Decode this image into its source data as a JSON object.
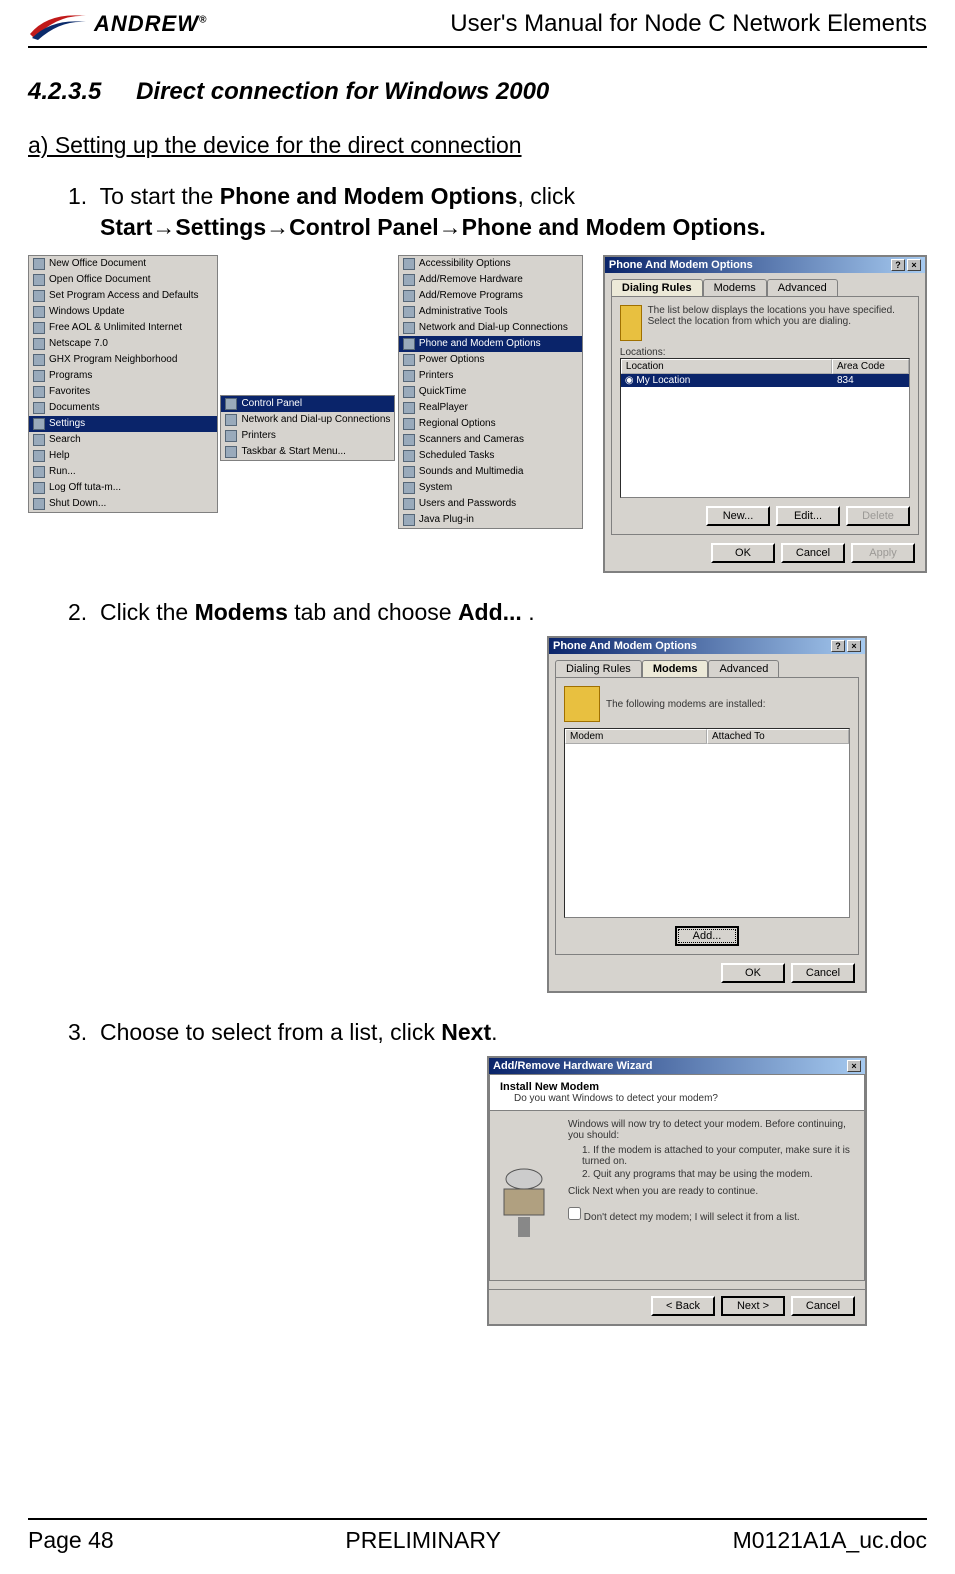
{
  "header": {
    "brand_text": "ANDREW",
    "brand_reg": "®",
    "logo_colors": {
      "red": "#c11a1a",
      "blue": "#0b2b6b"
    },
    "doc_title": "User's Manual for Node C Network Elements"
  },
  "section": {
    "number": "4.2.3.5",
    "title": "Direct connection for Windows 2000"
  },
  "subsection_a": "a) Setting up the device for the direct connection",
  "steps": {
    "s1_num": "1.",
    "s1_pre": "To start the ",
    "s1_b1": "Phone and Modem Options",
    "s1_mid": ", click",
    "s1_b2a": "Start",
    "s1_b2b": "Settings",
    "s1_b2c": "Control Panel",
    "s1_b2d": "Phone and Modem Options.",
    "arrow": "→",
    "s2_num": "2.",
    "s2_pre": "Click the ",
    "s2_b1": "Modems",
    "s2_mid": " tab and choose ",
    "s2_b2": "Add...",
    "s2_post": " .",
    "s3_num": "3.",
    "s3_pre": "Choose to select from a list, click ",
    "s3_b1": "Next",
    "s3_post": "."
  },
  "shot_startmenu": {
    "col1_items": [
      "New Office Document",
      "Open Office Document",
      "Set Program Access and Defaults",
      "Windows Update",
      "Free AOL & Unlimited Internet",
      "Netscape 7.0",
      "GHX Program Neighborhood",
      "Programs",
      "Favorites",
      "Documents",
      "Settings",
      "Search",
      "Help",
      "Run...",
      "Log Off tuta-m...",
      "Shut Down..."
    ],
    "col1_selected": "Settings",
    "col2_items": [
      "Control Panel",
      "Network and Dial-up Connections",
      "Printers",
      "Taskbar & Start Menu..."
    ],
    "col2_selected": "Control Panel",
    "col3_items": [
      "Accessibility Options",
      "Add/Remove Hardware",
      "Add/Remove Programs",
      "Administrative Tools",
      "Network and Dial-up Connections",
      "Phone and Modem Options",
      "Power Options",
      "Printers",
      "QuickTime",
      "RealPlayer",
      "Regional Options",
      "Scanners and Cameras",
      "Scheduled Tasks",
      "Sounds and Multimedia",
      "System",
      "Users and Passwords",
      "Java Plug-in"
    ],
    "col3_selected": "Phone and Modem Options"
  },
  "dialog_pm1": {
    "title": "Phone And Modem Options",
    "tabs": [
      "Dialing Rules",
      "Modems",
      "Advanced"
    ],
    "active_tab": "Dialing Rules",
    "hint": "The list below displays the locations you have specified. Select the location from which you are dialing.",
    "locations_label": "Locations:",
    "col_location": "Location",
    "col_area": "Area Code",
    "row_location": "My Location",
    "row_area": "834",
    "btn_new": "New...",
    "btn_edit": "Edit...",
    "btn_delete": "Delete",
    "btn_ok": "OK",
    "btn_cancel": "Cancel",
    "btn_apply": "Apply"
  },
  "dialog_pm2": {
    "title": "Phone And Modem Options",
    "tabs": [
      "Dialing Rules",
      "Modems",
      "Advanced"
    ],
    "active_tab": "Modems",
    "hint": "The following modems are installed:",
    "col_modem": "Modem",
    "col_attached": "Attached To",
    "btn_add": "Add...",
    "btn_ok": "OK",
    "btn_cancel": "Cancel"
  },
  "dialog_wizard": {
    "title": "Add/Remove Hardware Wizard",
    "heading": "Install New Modem",
    "sub": "Do you want Windows to detect your modem?",
    "body1": "Windows will now try to detect your modem. Before continuing, you should:",
    "body2": "1. If the modem is attached to your computer, make sure it is turned on.",
    "body3": "2. Quit any programs that may be using the modem.",
    "body4": "Click Next when you are ready to continue.",
    "checkbox": "Don't detect my modem; I will select it from a list.",
    "btn_back": "< Back",
    "btn_next": "Next >",
    "btn_cancel": "Cancel"
  },
  "footer": {
    "left": "Page 48",
    "center": "PRELIMINARY",
    "right": "M0121A1A_uc.doc"
  },
  "colors": {
    "page_bg": "#ffffff",
    "text": "#000000",
    "rule": "#000000",
    "win_bg": "#d6d3ce",
    "win_title_from": "#0a246a",
    "win_title_to": "#a6caf0",
    "sel_bg": "#0a246a"
  }
}
